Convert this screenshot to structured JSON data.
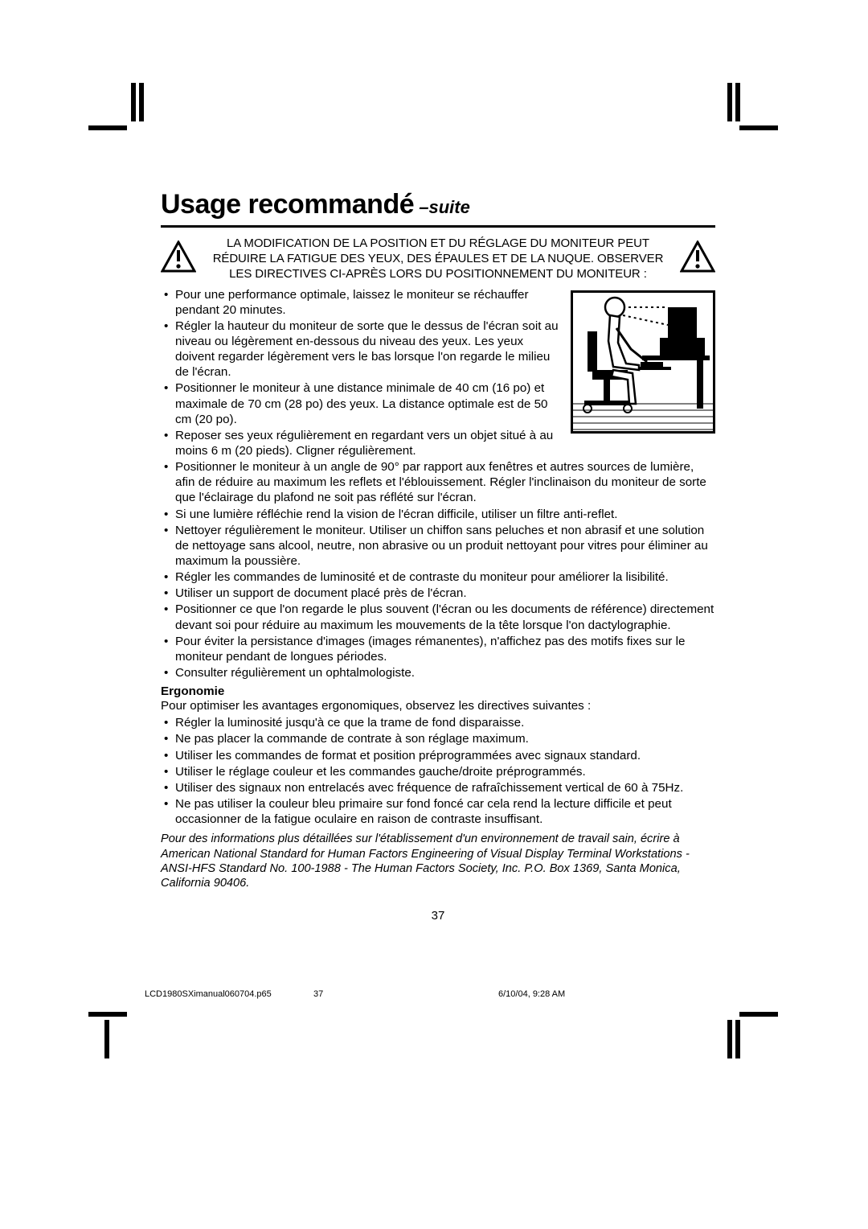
{
  "colors": {
    "ink": "#000000",
    "paper": "#ffffff"
  },
  "title": {
    "main": "Usage recommandé",
    "suffix": " –suite"
  },
  "warning": {
    "text": "LA MODIFICATION DE LA POSITION ET DU RÉGLAGE DU MONITEUR PEUT RÉDUIRE LA FATIGUE DES YEUX, DES ÉPAULES ET DE LA NUQUE. OBSERVER LES DIRECTIVES CI-APRÈS LORS DU POSITIONNEMENT DU MONITEUR :"
  },
  "bullets1": [
    "Pour une performance optimale, laissez le moniteur se réchauffer pendant 20 minutes.",
    "Régler la hauteur du moniteur de sorte que le dessus de l'écran soit au niveau ou légèrement en-dessous du niveau des yeux. Les yeux doivent regarder légèrement vers le bas lorsque l'on regarde le milieu de l'écran.",
    "Positionner le moniteur à une distance minimale de 40 cm (16 po) et maximale de 70 cm (28 po) des yeux. La distance optimale est de 50 cm (20 po).",
    "Reposer ses yeux régulièrement en regardant vers un objet situé à au moins 6 m (20 pieds). Cligner régulièrement.",
    "Positionner le moniteur à un angle de 90° par rapport aux fenêtres et autres sources de lumière, afin de réduire au maximum les reflets et l'éblouissement. Régler l'inclinaison du moniteur de sorte que l'éclairage du plafond ne soit pas réflété sur l'écran.",
    "Si une lumière réfléchie rend la vision de l'écran difficile, utiliser un filtre anti-reflet.",
    "Nettoyer régulièrement le moniteur. Utiliser un chiffon sans peluches et non abrasif et une solution de nettoyage sans alcool, neutre, non abrasive ou un produit nettoyant pour vitres pour éliminer au maximum la poussière.",
    "Régler les commandes de luminosité et de contraste du moniteur pour améliorer la lisibilité.",
    "Utiliser un support de document placé près de l'écran.",
    "Positionner ce que l'on regarde le plus souvent (l'écran ou les documents de référence) directement devant soi pour réduire au maximum les mouvements de la tête lorsque l'on dactylographie.",
    "Pour éviter la persistance d'images (images rémanentes), n'affichez pas des motifs fixes sur le moniteur pendant de longues périodes.",
    "Consulter régulièrement un ophtalmologiste."
  ],
  "ergonomie": {
    "heading": "Ergonomie",
    "intro": "Pour optimiser les avantages ergonomiques, observez les directives suivantes :",
    "bullets": [
      "Régler la luminosité jusqu'à ce que la trame de fond disparaisse.",
      "Ne pas placer la commande de contrate à son réglage maximum.",
      "Utiliser les commandes de format et position préprogrammées avec signaux standard.",
      "Utiliser le réglage couleur et les commandes gauche/droite préprogrammés.",
      "Utiliser des signaux non entrelacés avec fréquence de rafraîchissement vertical de 60 à 75Hz.",
      "Ne pas utiliser la couleur bleu primaire sur fond foncé car cela rend la lecture difficile et peut occasionner de la fatigue oculaire en raison de contraste insuffisant."
    ]
  },
  "footnote": "Pour des informations plus détaillées sur l'établissement d'un environnement de travail sain, écrire à American National Standard for Human Factors Engineering of Visual Display Terminal Workstations - ANSI-HFS Standard No. 100-1988 - The Human Factors Society, Inc. P.O. Box 1369, Santa Monica, California 90406.",
  "pageNumber": "37",
  "subfooter": {
    "file": "LCD1980SXimanual060704.p65",
    "page": "37",
    "datetime": "6/10/04, 9:28 AM"
  }
}
